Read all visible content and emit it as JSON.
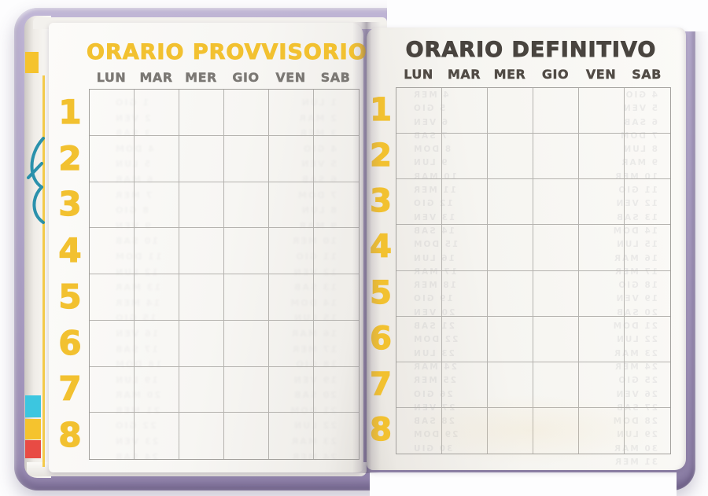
{
  "colors": {
    "accent_yellow": "#f2c130",
    "ink_dark": "#49443f",
    "header_gray": "#7b7874",
    "header_dark": "#514b45",
    "grid_line": "#b5b3af",
    "grid_outer": "#a3a19d",
    "cover_lavender": "#b1a6c9",
    "cover_edge": "#8e81a8",
    "tab_cyan": "#3cc6e0",
    "tab_yellow": "#f5c32e",
    "tab_red": "#e84b44",
    "ghost_ink": "#7c7c88"
  },
  "left_page": {
    "title": "ORARIO PROVVISORIO",
    "days": [
      "LUN",
      "MAR",
      "MER",
      "GIO",
      "VEN",
      "SAB"
    ],
    "periods": [
      "1",
      "2",
      "3",
      "4",
      "5",
      "6",
      "7",
      "8"
    ],
    "grid": {
      "columns": 6,
      "rows": 8,
      "cells_empty": true
    },
    "illegible_show_through_approx": [
      [
        "1 LUN",
        "1 GIO"
      ],
      [
        "2 MAR",
        "2 VEN"
      ],
      [
        "3 MER",
        "3 SAB"
      ],
      [
        "4 GIO",
        "4 DOM"
      ],
      [
        "5 VEN",
        "5 LUN"
      ],
      [
        "6 SAB",
        "6 MAR"
      ],
      [
        "7 DOM",
        "7 MER"
      ],
      [
        "8 LUN",
        "8 GIO"
      ],
      [
        "9 MAR",
        "9 VEN"
      ],
      [
        "10 MER",
        "10 SAB"
      ],
      [
        "11 GIO",
        "11 DOM"
      ],
      [
        "12 VEN",
        "12 LUN"
      ],
      [
        "13 SAB",
        "13 MAR"
      ],
      [
        "14 DOM",
        "14 MER"
      ],
      [
        "15 LUN",
        "15 GIO"
      ],
      [
        "16 MAR",
        "16 VEN"
      ],
      [
        "17 MER",
        "17 SAB"
      ],
      [
        "18 GIO",
        "18 DOM"
      ],
      [
        "19 VEN",
        "19 LUN"
      ],
      [
        "20 SAB",
        "20 MAR"
      ],
      [
        "21 DOM",
        "21 MER"
      ],
      [
        "22 LUN",
        "22 GIO"
      ],
      [
        "23 MAR",
        "23 VEN"
      ],
      [
        "24 MER",
        "24 SAB"
      ]
    ]
  },
  "right_page": {
    "title": "ORARIO DEFINITIVO",
    "days": [
      "LUN",
      "MAR",
      "MER",
      "GIO",
      "VEN",
      "SAB"
    ],
    "periods": [
      "1",
      "2",
      "3",
      "4",
      "5",
      "6",
      "7",
      "8"
    ],
    "grid": {
      "columns": 6,
      "rows": 8,
      "cells_empty": true
    },
    "illegible_show_through_approx": [
      [
        "4 GIO",
        "4 MER"
      ],
      [
        "5 VEN",
        "5 GIO"
      ],
      [
        "6 SAB",
        "6 VEN"
      ],
      [
        "7 DOM",
        "7 SAB"
      ],
      [
        "8 LUN",
        "8 DOM"
      ],
      [
        "9 MAR",
        "9 LUN"
      ],
      [
        "10 MER",
        "10 MAR"
      ],
      [
        "11 GIO",
        "11 MER"
      ],
      [
        "12 VEN",
        "12 GIO"
      ],
      [
        "13 SAB",
        "13 VEN"
      ],
      [
        "14 DOM",
        "14 SAB"
      ],
      [
        "15 LUN",
        "15 DOM"
      ],
      [
        "16 MAR",
        "16 LUN"
      ],
      [
        "17 MER",
        "17 MAR"
      ],
      [
        "18 GIO",
        "18 MER"
      ],
      [
        "19 VEN",
        "19 GIO"
      ],
      [
        "20 SAB",
        "20 VEN"
      ],
      [
        "21 DOM",
        "21 SAB"
      ],
      [
        "22 LUN",
        "22 DOM"
      ],
      [
        "23 MAR",
        "23 LUN"
      ],
      [
        "24 MER",
        "24 MAR"
      ],
      [
        "25 GIO",
        "25 MER"
      ],
      [
        "26 VEN",
        "26 GIO"
      ],
      [
        "27 SAB",
        "27 VEN"
      ],
      [
        "28 DOM",
        "28 SAB"
      ],
      [
        "29 LUN",
        "29 DOM"
      ],
      [
        "30 MAR",
        "30 GIU"
      ],
      [
        "31 MER",
        ""
      ]
    ]
  }
}
